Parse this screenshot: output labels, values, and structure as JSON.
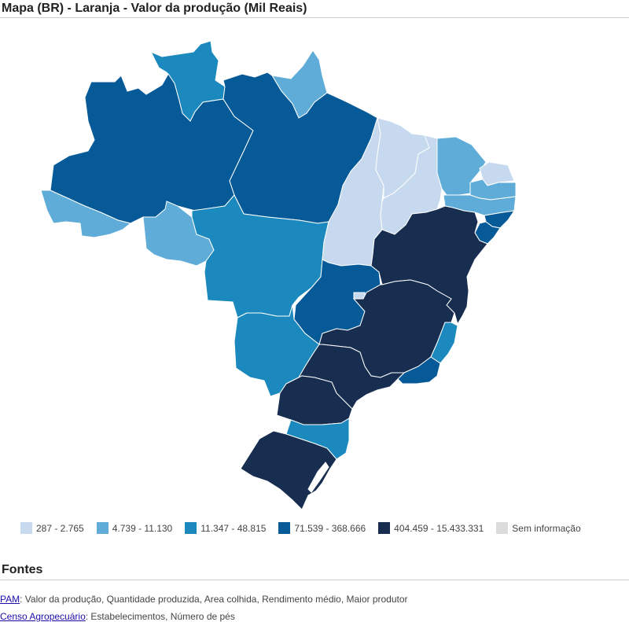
{
  "title": "Mapa (BR) - Laranja - Valor da produção (Mil Reais)",
  "classes": [
    {
      "label": "287 - 2.765",
      "color": "#c6d9ee"
    },
    {
      "label": "4.739 - 11.130",
      "color": "#5eacd7"
    },
    {
      "label": "11.347 - 48.815",
      "color": "#1b89bd"
    },
    {
      "label": "71.539 - 368.666",
      "color": "#075a98"
    },
    {
      "label": "404.459 - 15.433.331",
      "color": "#182e51"
    },
    {
      "label": "Sem informação",
      "color": "#dcdcdc"
    }
  ],
  "map": {
    "states": [
      {
        "id": "RR",
        "class": 2
      },
      {
        "id": "AP",
        "class": 1
      },
      {
        "id": "AM",
        "class": 3
      },
      {
        "id": "PA",
        "class": 3
      },
      {
        "id": "AC",
        "class": 1
      },
      {
        "id": "RO",
        "class": 1
      },
      {
        "id": "MT",
        "class": 2
      },
      {
        "id": "TO",
        "class": 0
      },
      {
        "id": "MA",
        "class": 0
      },
      {
        "id": "PI",
        "class": 0
      },
      {
        "id": "CE",
        "class": 1
      },
      {
        "id": "RN",
        "class": 0
      },
      {
        "id": "PB",
        "class": 1
      },
      {
        "id": "PE",
        "class": 1
      },
      {
        "id": "AL",
        "class": 3
      },
      {
        "id": "SE",
        "class": 3
      },
      {
        "id": "BA",
        "class": 4
      },
      {
        "id": "GO",
        "class": 3
      },
      {
        "id": "DF",
        "class": 0
      },
      {
        "id": "MS",
        "class": 2
      },
      {
        "id": "MG",
        "class": 4
      },
      {
        "id": "ES",
        "class": 2
      },
      {
        "id": "RJ",
        "class": 3
      },
      {
        "id": "SP",
        "class": 4
      },
      {
        "id": "PR",
        "class": 4
      },
      {
        "id": "SC",
        "class": 2
      },
      {
        "id": "RS",
        "class": 4
      }
    ]
  },
  "sources": {
    "heading": "Fontes",
    "items": [
      {
        "link": "PAM",
        "text": ": Valor da produção, Quantidade produzida, Area colhida, Rendimento médio, Maior produtor"
      },
      {
        "link": "Censo Agropecuário",
        "text": ": Estabelecimentos, Número de pés"
      }
    ]
  }
}
